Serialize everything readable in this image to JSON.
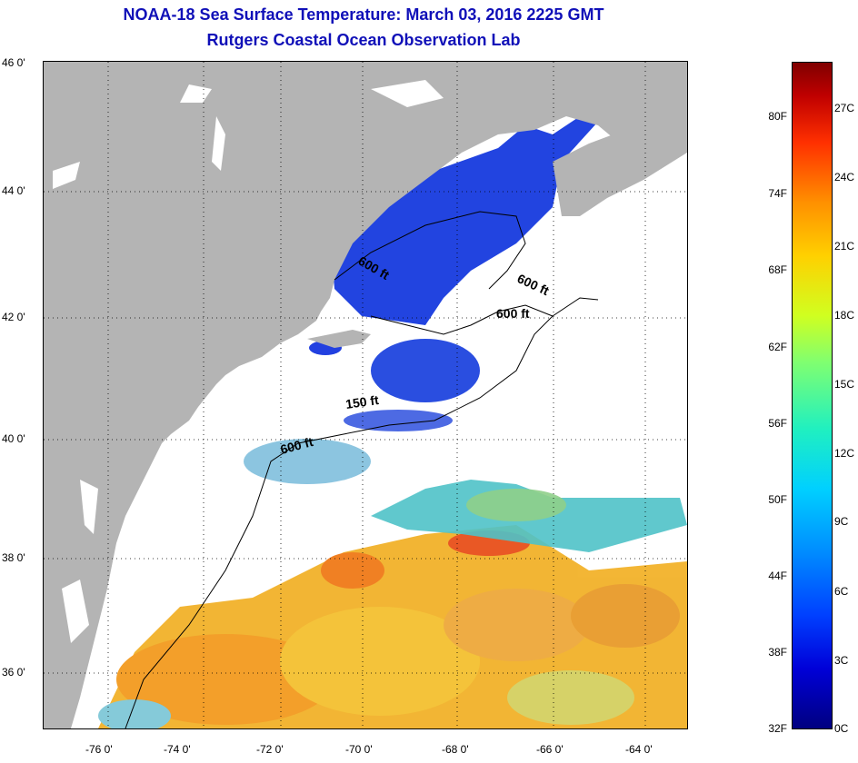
{
  "title": {
    "line1": "NOAA-18 Sea Surface Temperature:  March 03, 2016 2225 GMT",
    "line2": "Rutgers Coastal Ocean Observation Lab"
  },
  "latitude_labels": [
    "46 0'",
    "44 0'",
    "42 0'",
    "40 0'",
    "38 0'",
    "36 0'"
  ],
  "longitude_labels": [
    "-76 0'",
    "-74 0'",
    "-72 0'",
    "-70 0'",
    "-68 0'",
    "-66 0'",
    "-64 0'"
  ],
  "contour_labels": [
    "600 ft",
    "600 ft",
    "600 ft",
    "150 ft",
    "600 ft"
  ],
  "colorbar": {
    "fahrenheit_labels": [
      "80F",
      "74F",
      "68F",
      "62F",
      "56F",
      "50F",
      "44F",
      "38F",
      "32F"
    ],
    "celsius_labels": [
      "27C",
      "24C",
      "21C",
      "18C",
      "15C",
      "12C",
      "9C",
      "6C",
      "3C",
      "0C"
    ],
    "min_c": 0,
    "max_c": 29
  },
  "colors": {
    "title": "#1010b8",
    "land": "#b4b4b4",
    "ocean_no_data": "#ffffff"
  }
}
